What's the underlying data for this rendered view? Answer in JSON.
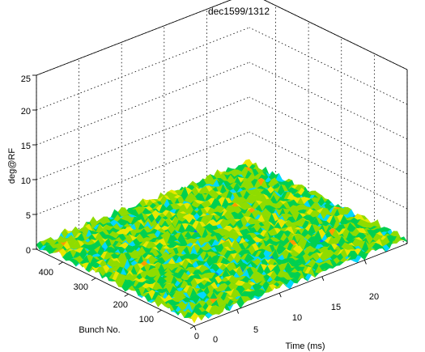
{
  "chart_data": {
    "type": "surface",
    "title": "dec1599/1312",
    "xlabel": "Time  (ms)",
    "ylabel": "Bunch No.",
    "zlabel": "deg@RF",
    "x_ticks": [
      "0",
      "5",
      "10",
      "15",
      "20"
    ],
    "y_ticks": [
      "0",
      "100",
      "200",
      "300",
      "400"
    ],
    "z_ticks": [
      "0",
      "5",
      "10",
      "15",
      "20",
      "25"
    ],
    "xlim": [
      0,
      25
    ],
    "ylim": [
      0,
      480
    ],
    "zlim": [
      0,
      25
    ],
    "grid": true,
    "surface_amplitude_range": [
      0,
      1.5
    ],
    "colormap": [
      "#0000c8",
      "#0077ff",
      "#00d8ff",
      "#00d050",
      "#8fdc00",
      "#e8e800",
      "#ff9900",
      "#e00000"
    ]
  }
}
